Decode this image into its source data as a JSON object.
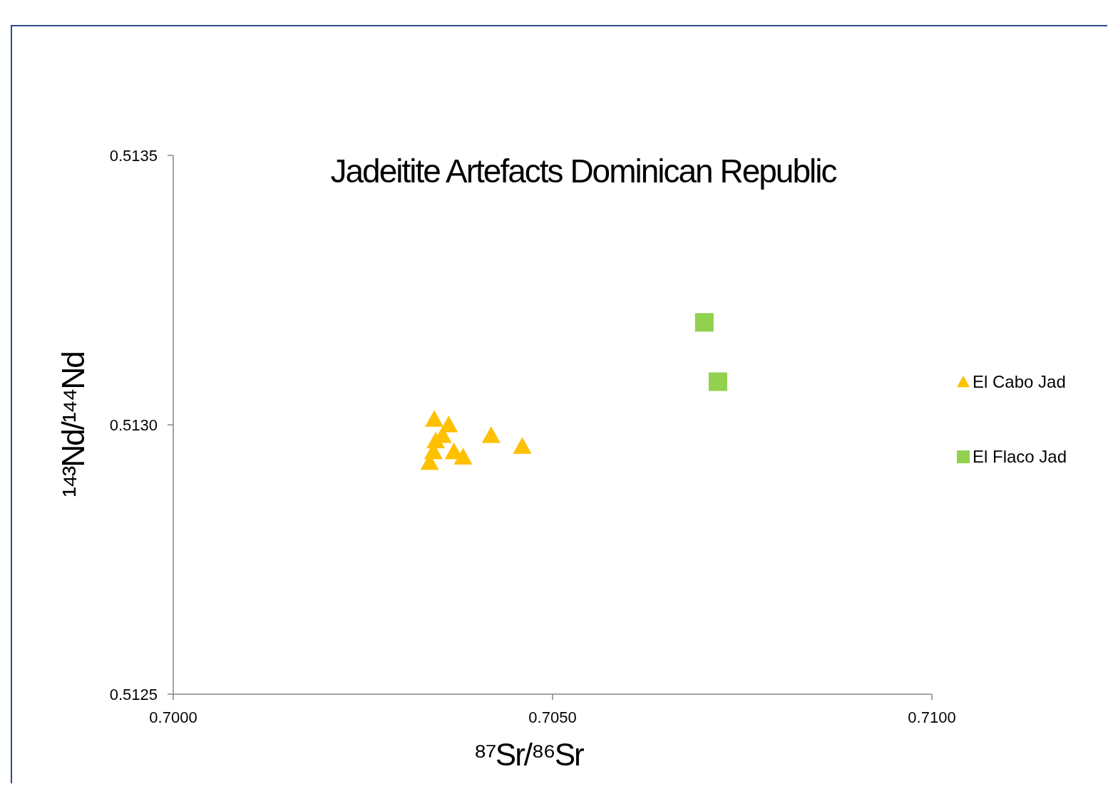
{
  "chart_data": {
    "type": "scatter",
    "title": "Jadeitite Artefacts Dominican Republic",
    "xlabel": "⁸⁷Sr/⁸⁶Sr",
    "ylabel": "¹⁴³Nd/¹⁴⁴Nd",
    "xlim": [
      0.7,
      0.71
    ],
    "xticks": [
      {
        "value": 0.7,
        "label": "0.7000"
      },
      {
        "value": 0.705,
        "label": "0.7050"
      },
      {
        "value": 0.71,
        "label": "0.7100"
      }
    ],
    "ylim": [
      0.5125,
      0.5135
    ],
    "yticks": [
      {
        "value": 0.5125,
        "label": "0.5125"
      },
      {
        "value": 0.513,
        "label": "0.5130"
      },
      {
        "value": 0.5135,
        "label": "0.5135"
      }
    ],
    "grid": false,
    "legend": "right",
    "series": [
      {
        "name": "El Cabo Jad",
        "color": "#ffc000",
        "marker": "triangle",
        "x": [
          0.70344,
          0.70363,
          0.70346,
          0.70355,
          0.70343,
          0.70338,
          0.7037,
          0.70382,
          0.70419,
          0.7046
        ],
        "values": [
          0.51301,
          0.513,
          0.51297,
          0.51298,
          0.51295,
          0.51293,
          0.51295,
          0.51294,
          0.51298,
          0.51296
        ]
      },
      {
        "name": "El Flaco Jad",
        "color": "#92d050",
        "marker": "square",
        "x": [
          0.707,
          0.70718
        ],
        "values": [
          0.51319,
          0.51308
        ]
      }
    ]
  }
}
